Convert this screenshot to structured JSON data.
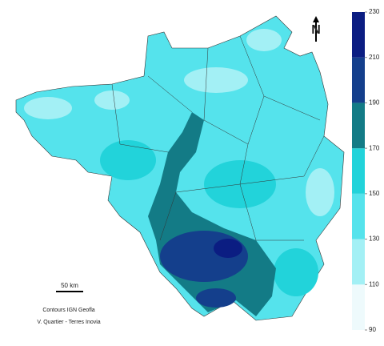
{
  "north": "N",
  "scale_bar": "50 km",
  "credits": [
    "Contours IGN Geofla",
    "V. Quartier - Terres Inovia"
  ],
  "legend": {
    "ticks": [
      90,
      110,
      130,
      150,
      170,
      190,
      210,
      230
    ],
    "colors": [
      "#eefafc",
      "#a3f0f5",
      "#55e3ec",
      "#22d3da",
      "#137b86",
      "#143f8c",
      "#0b1d82"
    ]
  }
}
